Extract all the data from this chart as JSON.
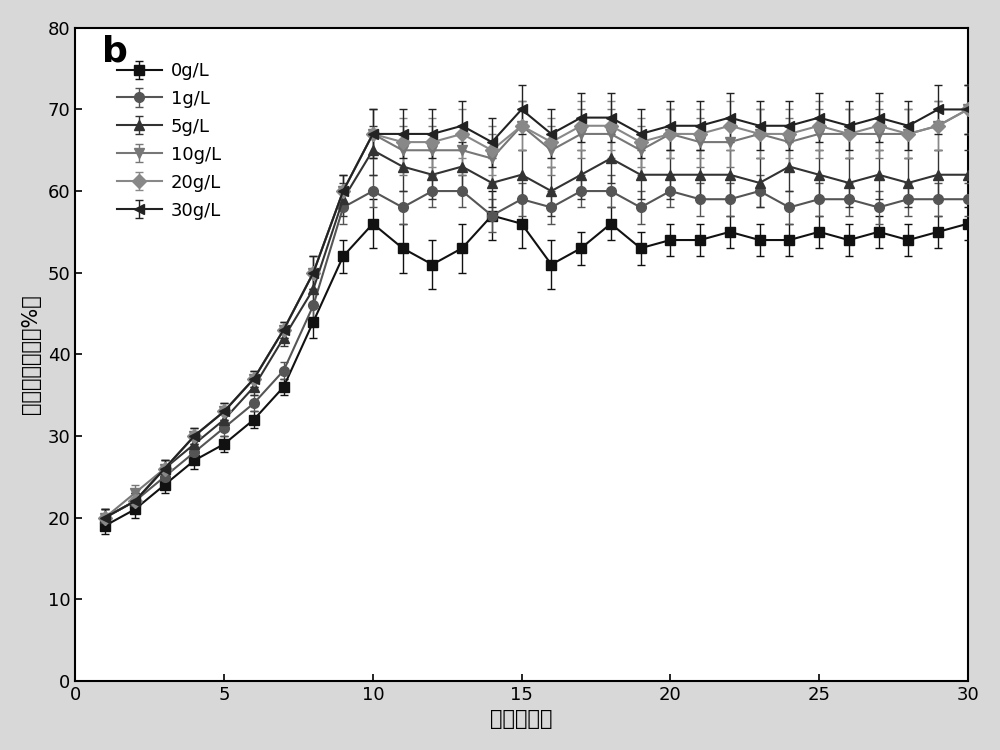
{
  "title_label": "b",
  "xlabel": "时间（天）",
  "ylabel": "沼气甲烷含量（%）",
  "xlim": [
    1,
    30
  ],
  "ylim": [
    0,
    80
  ],
  "xticks": [
    0,
    5,
    10,
    15,
    20,
    25,
    30
  ],
  "yticks": [
    0,
    10,
    20,
    30,
    40,
    50,
    60,
    70,
    80
  ],
  "series": [
    {
      "label": "0g/L",
      "marker": "s",
      "color": "#111111",
      "x": [
        1,
        2,
        3,
        4,
        5,
        6,
        7,
        8,
        9,
        10,
        11,
        12,
        13,
        14,
        15,
        16,
        17,
        18,
        19,
        20,
        21,
        22,
        23,
        24,
        25,
        26,
        27,
        28,
        29,
        30
      ],
      "y": [
        19,
        21,
        24,
        27,
        29,
        32,
        36,
        44,
        52,
        56,
        53,
        51,
        53,
        57,
        56,
        51,
        53,
        56,
        53,
        54,
        54,
        55,
        54,
        54,
        55,
        54,
        55,
        54,
        55,
        56
      ],
      "yerr": [
        1,
        1,
        1,
        1,
        1,
        1,
        1,
        2,
        2,
        3,
        3,
        3,
        3,
        3,
        3,
        3,
        2,
        2,
        2,
        2,
        2,
        2,
        2,
        2,
        2,
        2,
        2,
        2,
        2,
        2
      ]
    },
    {
      "label": "1g/L",
      "marker": "o",
      "color": "#555555",
      "x": [
        1,
        2,
        3,
        4,
        5,
        6,
        7,
        8,
        9,
        10,
        11,
        12,
        13,
        14,
        15,
        16,
        17,
        18,
        19,
        20,
        21,
        22,
        23,
        24,
        25,
        26,
        27,
        28,
        29,
        30
      ],
      "y": [
        20,
        22,
        25,
        28,
        31,
        34,
        38,
        46,
        58,
        60,
        58,
        60,
        60,
        57,
        59,
        58,
        60,
        60,
        58,
        60,
        59,
        59,
        60,
        58,
        59,
        59,
        58,
        59,
        59,
        59
      ],
      "yerr": [
        1,
        1,
        1,
        1,
        1,
        1,
        1,
        2,
        2,
        2,
        2,
        2,
        2,
        2,
        2,
        2,
        2,
        2,
        2,
        2,
        2,
        2,
        2,
        2,
        2,
        2,
        2,
        2,
        2,
        2
      ]
    },
    {
      "label": "5g/L",
      "marker": "^",
      "color": "#333333",
      "x": [
        1,
        2,
        3,
        4,
        5,
        6,
        7,
        8,
        9,
        10,
        11,
        12,
        13,
        14,
        15,
        16,
        17,
        18,
        19,
        20,
        21,
        22,
        23,
        24,
        25,
        26,
        27,
        28,
        29,
        30
      ],
      "y": [
        20,
        22,
        26,
        29,
        32,
        36,
        42,
        48,
        59,
        65,
        63,
        62,
        63,
        61,
        62,
        60,
        62,
        64,
        62,
        62,
        62,
        62,
        61,
        63,
        62,
        61,
        62,
        61,
        62,
        62
      ],
      "yerr": [
        1,
        1,
        1,
        1,
        1,
        1,
        1,
        2,
        2,
        3,
        3,
        3,
        3,
        3,
        3,
        3,
        3,
        3,
        3,
        3,
        3,
        3,
        3,
        3,
        3,
        3,
        3,
        3,
        3,
        3
      ]
    },
    {
      "label": "10g/L",
      "marker": "v",
      "color": "#777777",
      "x": [
        1,
        2,
        3,
        4,
        5,
        6,
        7,
        8,
        9,
        10,
        11,
        12,
        13,
        14,
        15,
        16,
        17,
        18,
        19,
        20,
        21,
        22,
        23,
        24,
        25,
        26,
        27,
        28,
        29,
        30
      ],
      "y": [
        20,
        23,
        26,
        30,
        33,
        37,
        43,
        50,
        60,
        67,
        65,
        65,
        65,
        64,
        68,
        65,
        67,
        67,
        65,
        67,
        66,
        66,
        67,
        66,
        67,
        67,
        67,
        67,
        68,
        70
      ],
      "yerr": [
        1,
        1,
        1,
        1,
        1,
        1,
        1,
        2,
        2,
        3,
        3,
        3,
        3,
        3,
        3,
        3,
        3,
        3,
        3,
        3,
        3,
        3,
        3,
        3,
        3,
        3,
        3,
        3,
        3,
        3
      ]
    },
    {
      "label": "20g/L",
      "marker": "D",
      "color": "#888888",
      "x": [
        1,
        2,
        3,
        4,
        5,
        6,
        7,
        8,
        9,
        10,
        11,
        12,
        13,
        14,
        15,
        16,
        17,
        18,
        19,
        20,
        21,
        22,
        23,
        24,
        25,
        26,
        27,
        28,
        29,
        30
      ],
      "y": [
        20,
        22,
        26,
        30,
        33,
        37,
        43,
        50,
        60,
        67,
        66,
        66,
        67,
        65,
        68,
        66,
        68,
        68,
        66,
        67,
        67,
        68,
        67,
        67,
        68,
        67,
        68,
        67,
        68,
        70
      ],
      "yerr": [
        1,
        1,
        1,
        1,
        1,
        1,
        1,
        2,
        2,
        3,
        3,
        3,
        3,
        3,
        3,
        3,
        3,
        3,
        3,
        3,
        3,
        3,
        3,
        3,
        3,
        3,
        3,
        3,
        3,
        3
      ]
    },
    {
      "label": "30g/L",
      "marker": "<",
      "color": "#222222",
      "x": [
        1,
        2,
        3,
        4,
        5,
        6,
        7,
        8,
        9,
        10,
        11,
        12,
        13,
        14,
        15,
        16,
        17,
        18,
        19,
        20,
        21,
        22,
        23,
        24,
        25,
        26,
        27,
        28,
        29,
        30
      ],
      "y": [
        20,
        22,
        26,
        30,
        33,
        37,
        43,
        50,
        60,
        67,
        67,
        67,
        68,
        66,
        70,
        67,
        69,
        69,
        67,
        68,
        68,
        69,
        68,
        68,
        69,
        68,
        69,
        68,
        70,
        70
      ],
      "yerr": [
        1,
        1,
        1,
        1,
        1,
        1,
        1,
        2,
        2,
        3,
        3,
        3,
        3,
        3,
        3,
        3,
        3,
        3,
        3,
        3,
        3,
        3,
        3,
        3,
        3,
        3,
        3,
        3,
        3,
        3
      ]
    }
  ],
  "outer_bg_color": "#d8d8d8",
  "plot_bg_color": "#ffffff",
  "label_fontsize": 15,
  "tick_fontsize": 13,
  "legend_fontsize": 13,
  "title_fontsize": 26
}
